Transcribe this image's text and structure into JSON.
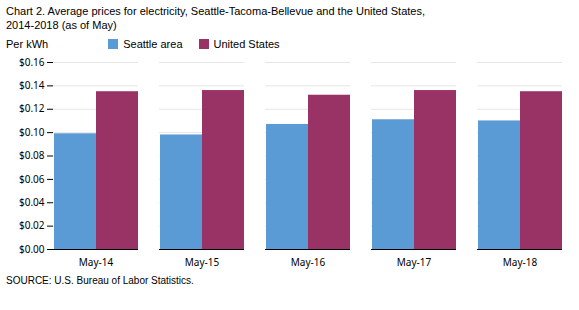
{
  "chart_data": {
    "type": "bar",
    "title": "Chart 2. Average prices for electricity, Seattle-Tacoma-Bellevue and the United States,",
    "subtitle": "2014-2018  (as of May)",
    "ylabel": "Per kWh",
    "caption": "SOURCE: U.S. Bureau of Labor Statistics.",
    "categories": [
      "May-14",
      "May-15",
      "May-16",
      "May-17",
      "May-18"
    ],
    "series": [
      {
        "name": "Seattle area",
        "color": "#5B9BD5",
        "values": [
          0.099,
          0.098,
          0.107,
          0.111,
          0.11
        ]
      },
      {
        "name": "United States",
        "color": "#993366",
        "values": [
          0.135,
          0.136,
          0.132,
          0.136,
          0.135
        ]
      }
    ],
    "ylim": [
      0,
      0.16
    ],
    "yticks": [
      {
        "value": 0.0,
        "label": "$0.00"
      },
      {
        "value": 0.02,
        "label": "$0.02"
      },
      {
        "value": 0.04,
        "label": "$0.04"
      },
      {
        "value": 0.06,
        "label": "$0.06"
      },
      {
        "value": 0.08,
        "label": "$0.08"
      },
      {
        "value": 0.1,
        "label": "$0.10"
      },
      {
        "value": 0.12,
        "label": "$0.12"
      },
      {
        "value": 0.14,
        "label": "$0.14"
      },
      {
        "value": 0.16,
        "label": "$0.16"
      }
    ],
    "grid": true,
    "legend": "top"
  }
}
